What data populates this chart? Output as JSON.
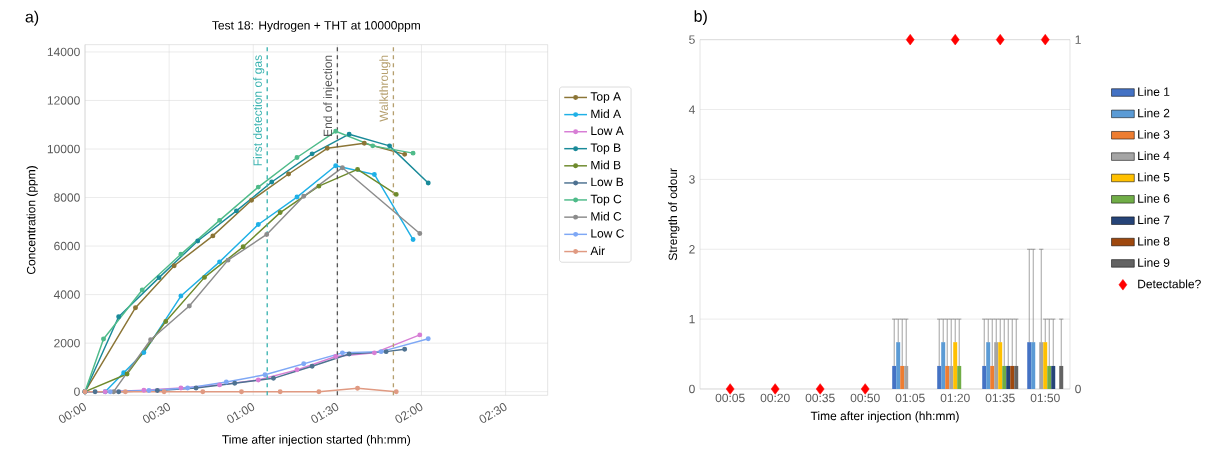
{
  "chart_data": [
    {
      "type": "line",
      "title": "Test 18: Hydrogen + THT at 10000ppm",
      "xlabel": "Time after injection started (hh:mm)",
      "ylabel": "Concentration (ppm)",
      "annotations": [
        "a)"
      ],
      "xlim": [
        0,
        2.75
      ],
      "ylim": [
        -150,
        14300
      ],
      "xticks": [
        {
          "value": 0,
          "label": "00:00"
        },
        {
          "value": 0.5,
          "label": "00:30"
        },
        {
          "value": 1,
          "label": "01:00"
        },
        {
          "value": 1.5,
          "label": "01:30"
        },
        {
          "value": 2,
          "label": "02:00"
        },
        {
          "value": 2.5,
          "label": "02:30"
        }
      ],
      "yticks": [
        0,
        2000,
        4000,
        6000,
        8000,
        10000,
        12000,
        14000
      ],
      "grid": true,
      "legend": "right",
      "marker": "circle",
      "line_style": "solid",
      "ref_lines": [
        {
          "axis": "x",
          "value": 1.083,
          "label": "First detection of gas",
          "color": "#3ab3b0",
          "line_style": "dashed"
        },
        {
          "axis": "x",
          "value": 1.5,
          "label": "End of injection",
          "color": "#555555",
          "line_style": "dashed"
        },
        {
          "axis": "x",
          "value": 1.833,
          "label": "Walkthrough",
          "color": "#b59f6e",
          "line_style": "dashed"
        }
      ],
      "series": [
        {
          "name": "Top A",
          "color": "#8b7536",
          "x": [
            0,
            0.3,
            0.53,
            0.76,
            0.99,
            1.21,
            1.44,
            1.66,
            1.9
          ],
          "values": [
            0,
            3460,
            5190,
            6420,
            7890,
            8970,
            10030,
            10240,
            9780
          ]
        },
        {
          "name": "Mid A",
          "color": "#1fb0e6",
          "x": [
            0,
            0.12,
            0.23,
            0.35,
            0.57,
            0.8,
            1.03,
            1.26,
            1.49,
            1.72,
            1.95
          ],
          "values": [
            0,
            0,
            780,
            1610,
            3940,
            5350,
            6890,
            8020,
            9310,
            8950,
            6270
          ]
        },
        {
          "name": "Low A",
          "color": "#d77ed5",
          "x": [
            0,
            0.12,
            0.35,
            0.57,
            0.8,
            1.03,
            1.26,
            1.49,
            1.72,
            1.99
          ],
          "values": [
            0,
            0,
            60,
            150,
            280,
            480,
            900,
            1450,
            1600,
            2340
          ]
        },
        {
          "name": "Top B",
          "color": "#1a8a99",
          "x": [
            0,
            0.2,
            0.44,
            0.67,
            0.9,
            1.11,
            1.35,
            1.57,
            1.81,
            2.04
          ],
          "values": [
            0,
            3090,
            4700,
            6210,
            7450,
            8640,
            9800,
            10610,
            10130,
            8600
          ]
        },
        {
          "name": "Mid B",
          "color": "#6e8a2c",
          "x": [
            0,
            0.25,
            0.48,
            0.71,
            0.94,
            1.16,
            1.39,
            1.62,
            1.85
          ],
          "values": [
            0,
            730,
            2890,
            4710,
            5970,
            7380,
            8470,
            9160,
            8130
          ]
        },
        {
          "name": "Low B",
          "color": "#4e7291",
          "x": [
            0,
            0.06,
            0.2,
            0.43,
            0.66,
            0.89,
            1.12,
            1.35,
            1.57,
            1.79,
            1.9
          ],
          "values": [
            0,
            0,
            0,
            50,
            150,
            350,
            550,
            1050,
            1550,
            1650,
            1750
          ]
        },
        {
          "name": "Top C",
          "color": "#4fbb8a",
          "x": [
            0,
            0.11,
            0.34,
            0.57,
            0.8,
            1.03,
            1.26,
            1.49,
            1.71,
            1.95
          ],
          "values": [
            0,
            2170,
            4190,
            5660,
            7060,
            8430,
            9650,
            10730,
            10130,
            9830
          ]
        },
        {
          "name": "Mid C",
          "color": "#8c8c8c",
          "x": [
            0,
            0.17,
            0.39,
            0.62,
            0.85,
            1.08,
            1.3,
            1.53,
            1.99
          ],
          "values": [
            0,
            0,
            2140,
            3530,
            5420,
            6480,
            8050,
            9230,
            6520
          ]
        },
        {
          "name": "Low C",
          "color": "#7fa8f5",
          "x": [
            0,
            0.15,
            0.38,
            0.61,
            0.84,
            1.07,
            1.3,
            1.53,
            1.76,
            2.04
          ],
          "values": [
            0,
            0,
            50,
            150,
            400,
            700,
            1150,
            1600,
            1650,
            2180
          ]
        },
        {
          "name": "Air",
          "color": "#e09a82",
          "x": [
            0,
            0.24,
            0.47,
            0.7,
            0.93,
            1.16,
            1.39,
            1.62,
            1.85
          ],
          "values": [
            0,
            0,
            0,
            0,
            0,
            0,
            0,
            140,
            0
          ]
        }
      ]
    },
    {
      "type": "bar",
      "xlabel": "Time after injection (hh:mm)",
      "ylabel": "Strength of odour",
      "annotations": [
        "b)"
      ],
      "categories": [
        "00:05",
        "00:20",
        "00:35",
        "00:50",
        "01:05",
        "01:20",
        "01:35",
        "01:50"
      ],
      "ylim": [
        0,
        5
      ],
      "yticks": [
        0,
        1,
        2,
        3,
        4,
        5
      ],
      "y2lim": [
        0,
        1
      ],
      "y2ticks": [
        0,
        1
      ],
      "grid": "y",
      "legend": "right",
      "series": [
        {
          "name": "Line 1",
          "color": "#4472c4",
          "values": [
            0,
            0,
            0,
            0,
            0.33,
            0.33,
            0.33,
            0.67
          ],
          "errors": [
            null,
            null,
            null,
            null,
            [
              0.33,
              1
            ],
            [
              0.33,
              1
            ],
            [
              0.33,
              1
            ],
            [
              0.67,
              2
            ]
          ]
        },
        {
          "name": "Line 2",
          "color": "#5b9bd5",
          "values": [
            0,
            0,
            0,
            0,
            0.67,
            0.67,
            0.67,
            0.67
          ],
          "errors": [
            null,
            null,
            null,
            null,
            [
              0.67,
              1
            ],
            [
              0.67,
              1
            ],
            [
              0.67,
              1
            ],
            [
              0.67,
              2
            ]
          ]
        },
        {
          "name": "Line 3",
          "color": "#ed7d31",
          "values": [
            0,
            0,
            0,
            0,
            0.33,
            0.33,
            0.33,
            0
          ],
          "errors": [
            null,
            null,
            null,
            null,
            [
              0.33,
              1
            ],
            [
              0.33,
              1
            ],
            [
              0.33,
              1
            ],
            null
          ]
        },
        {
          "name": "Line 4",
          "color": "#a5a5a5",
          "values": [
            0,
            0,
            0,
            0,
            0.33,
            0.33,
            0.67,
            0.67
          ],
          "errors": [
            null,
            null,
            null,
            null,
            [
              0.33,
              1
            ],
            [
              0.33,
              1
            ],
            [
              0.67,
              1
            ],
            [
              0.67,
              2
            ]
          ]
        },
        {
          "name": "Line 5",
          "color": "#ffc000",
          "values": [
            0,
            0,
            0,
            0,
            0,
            0.67,
            0.67,
            0.67
          ],
          "errors": [
            null,
            null,
            null,
            null,
            null,
            [
              0.67,
              1
            ],
            [
              0.67,
              1
            ],
            [
              0.67,
              1
            ]
          ]
        },
        {
          "name": "Line 6",
          "color": "#70ad47",
          "values": [
            0,
            0,
            0,
            0,
            0,
            0.33,
            0.33,
            0.33
          ],
          "errors": [
            null,
            null,
            null,
            null,
            null,
            [
              0.33,
              1
            ],
            [
              0.33,
              1
            ],
            [
              0.33,
              1
            ]
          ]
        },
        {
          "name": "Line 7",
          "color": "#264478",
          "values": [
            0,
            0,
            0,
            0,
            0,
            0,
            0.33,
            0.33
          ],
          "errors": [
            null,
            null,
            null,
            null,
            null,
            null,
            [
              0.33,
              1
            ],
            [
              0.33,
              1
            ]
          ]
        },
        {
          "name": "Line 8",
          "color": "#9e480e",
          "values": [
            0,
            0,
            0,
            0,
            0,
            0,
            0.33,
            0
          ],
          "errors": [
            null,
            null,
            null,
            null,
            null,
            null,
            [
              0.33,
              1
            ],
            null
          ]
        },
        {
          "name": "Line 9",
          "color": "#636363",
          "values": [
            0,
            0,
            0,
            0,
            0,
            0,
            0.33,
            0.33
          ],
          "errors": [
            null,
            null,
            null,
            null,
            null,
            null,
            [
              0.33,
              1
            ],
            [
              0.33,
              1
            ]
          ]
        },
        {
          "name": "Detectable?",
          "type": "scatter",
          "axis": "y2",
          "marker": "diamond",
          "color": "#ff0000",
          "values": [
            0,
            0,
            0,
            0,
            1,
            1,
            1,
            1
          ]
        }
      ]
    }
  ]
}
